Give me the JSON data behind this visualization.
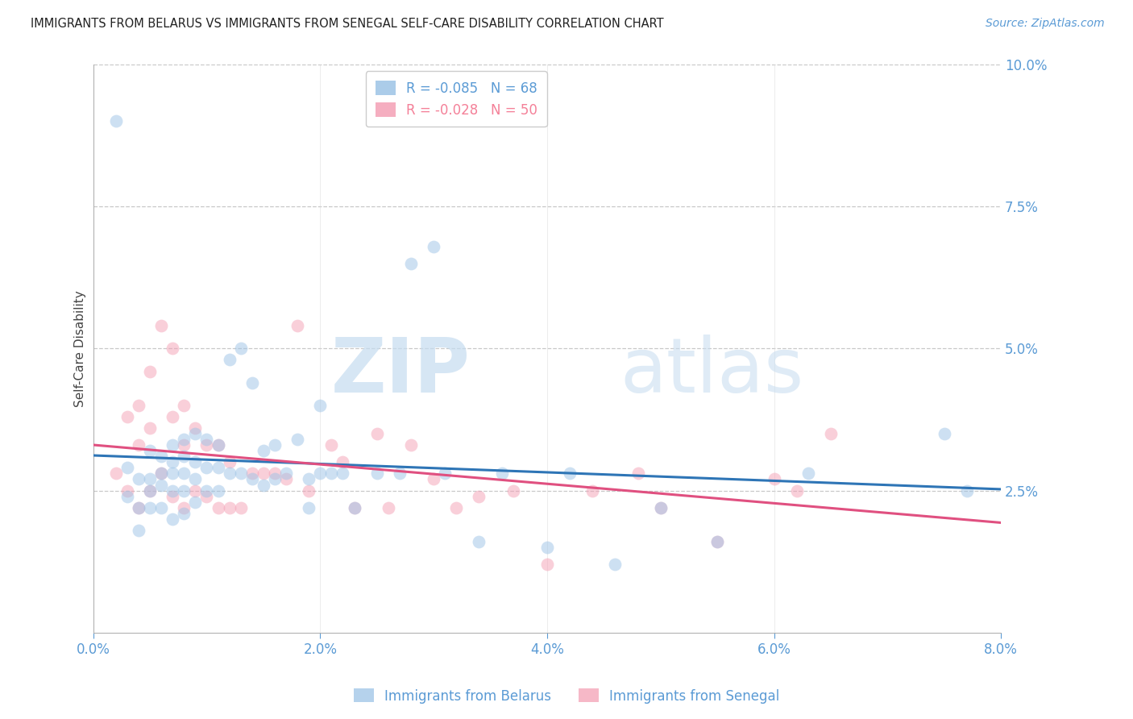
{
  "title": "IMMIGRANTS FROM BELARUS VS IMMIGRANTS FROM SENEGAL SELF-CARE DISABILITY CORRELATION CHART",
  "source": "Source: ZipAtlas.com",
  "ylabel": "Self-Care Disability",
  "xlim": [
    0.0,
    0.08
  ],
  "ylim": [
    0.0,
    0.1
  ],
  "ytick_vals": [
    0.025,
    0.05,
    0.075,
    0.1
  ],
  "ytick_labels": [
    "2.5%",
    "5.0%",
    "7.5%",
    "10.0%"
  ],
  "xtick_vals": [
    0.0,
    0.02,
    0.04,
    0.06,
    0.08
  ],
  "xtick_labels": [
    "0.0%",
    "2.0%",
    "4.0%",
    "6.0%",
    "8.0%"
  ],
  "legend_top": [
    {
      "label": "R = -0.085   N = 68",
      "color": "#5b9bd5"
    },
    {
      "label": "R = -0.028   N = 50",
      "color": "#f48098"
    }
  ],
  "legend_bottom": [
    {
      "label": "Immigrants from Belarus",
      "color": "#9dc3e6"
    },
    {
      "label": "Immigrants from Senegal",
      "color": "#f4a0b5"
    }
  ],
  "belarus_color": "#9dc3e6",
  "senegal_color": "#f4a0b5",
  "trend_belarus_color": "#2e75b6",
  "trend_senegal_color": "#e05080",
  "background_color": "#ffffff",
  "grid_color": "#c8c8c8",
  "watermark_zip": "ZIP",
  "watermark_atlas": "atlas",
  "belarus_x": [
    0.002,
    0.003,
    0.003,
    0.004,
    0.004,
    0.004,
    0.005,
    0.005,
    0.005,
    0.005,
    0.006,
    0.006,
    0.006,
    0.006,
    0.007,
    0.007,
    0.007,
    0.007,
    0.007,
    0.008,
    0.008,
    0.008,
    0.008,
    0.008,
    0.009,
    0.009,
    0.009,
    0.009,
    0.01,
    0.01,
    0.01,
    0.011,
    0.011,
    0.011,
    0.012,
    0.012,
    0.013,
    0.013,
    0.014,
    0.014,
    0.015,
    0.015,
    0.016,
    0.016,
    0.017,
    0.018,
    0.019,
    0.019,
    0.02,
    0.02,
    0.021,
    0.022,
    0.023,
    0.025,
    0.027,
    0.028,
    0.03,
    0.031,
    0.034,
    0.036,
    0.04,
    0.042,
    0.046,
    0.05,
    0.055,
    0.063,
    0.075,
    0.077
  ],
  "belarus_y": [
    0.09,
    0.029,
    0.024,
    0.027,
    0.022,
    0.018,
    0.032,
    0.027,
    0.025,
    0.022,
    0.031,
    0.028,
    0.026,
    0.022,
    0.033,
    0.03,
    0.028,
    0.025,
    0.02,
    0.034,
    0.031,
    0.028,
    0.025,
    0.021,
    0.035,
    0.03,
    0.027,
    0.023,
    0.034,
    0.029,
    0.025,
    0.033,
    0.029,
    0.025,
    0.048,
    0.028,
    0.05,
    0.028,
    0.044,
    0.027,
    0.032,
    0.026,
    0.033,
    0.027,
    0.028,
    0.034,
    0.027,
    0.022,
    0.04,
    0.028,
    0.028,
    0.028,
    0.022,
    0.028,
    0.028,
    0.065,
    0.068,
    0.028,
    0.016,
    0.028,
    0.015,
    0.028,
    0.012,
    0.022,
    0.016,
    0.028,
    0.035,
    0.025
  ],
  "senegal_x": [
    0.002,
    0.003,
    0.003,
    0.004,
    0.004,
    0.004,
    0.005,
    0.005,
    0.005,
    0.006,
    0.006,
    0.007,
    0.007,
    0.007,
    0.008,
    0.008,
    0.008,
    0.009,
    0.009,
    0.01,
    0.01,
    0.011,
    0.011,
    0.012,
    0.012,
    0.013,
    0.014,
    0.015,
    0.016,
    0.017,
    0.018,
    0.019,
    0.021,
    0.022,
    0.023,
    0.025,
    0.026,
    0.028,
    0.03,
    0.032,
    0.034,
    0.037,
    0.04,
    0.044,
    0.048,
    0.05,
    0.055,
    0.06,
    0.062,
    0.065
  ],
  "senegal_y": [
    0.028,
    0.038,
    0.025,
    0.04,
    0.033,
    0.022,
    0.046,
    0.036,
    0.025,
    0.054,
    0.028,
    0.05,
    0.038,
    0.024,
    0.04,
    0.033,
    0.022,
    0.036,
    0.025,
    0.033,
    0.024,
    0.033,
    0.022,
    0.03,
    0.022,
    0.022,
    0.028,
    0.028,
    0.028,
    0.027,
    0.054,
    0.025,
    0.033,
    0.03,
    0.022,
    0.035,
    0.022,
    0.033,
    0.027,
    0.022,
    0.024,
    0.025,
    0.012,
    0.025,
    0.028,
    0.022,
    0.016,
    0.027,
    0.025,
    0.035
  ],
  "marker_size": 130,
  "alpha": 0.5
}
